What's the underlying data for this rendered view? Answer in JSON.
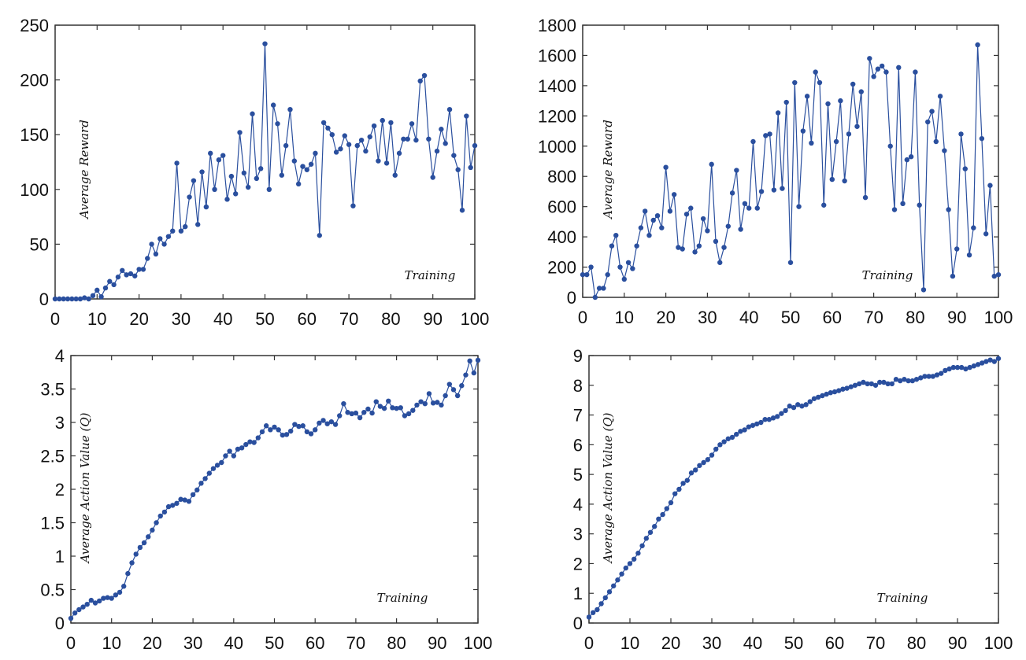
{
  "chart_data": [
    {
      "type": "line",
      "xlabel": "Training",
      "ylabel": "Average Reward",
      "xlim": [
        0,
        100
      ],
      "ylim": [
        0,
        250
      ],
      "xticks": [
        0,
        10,
        20,
        30,
        40,
        50,
        60,
        70,
        80,
        90,
        100
      ],
      "yticks": [
        0,
        50,
        100,
        150,
        200,
        250
      ],
      "color": "#2a4f9e",
      "series": [
        {
          "x": [
            0,
            1,
            2,
            3,
            4,
            5,
            6,
            7,
            8,
            9,
            10,
            11,
            12,
            13,
            14,
            15,
            16,
            17,
            18,
            19,
            20,
            21,
            22,
            23,
            24,
            25,
            26,
            27,
            28,
            29,
            30,
            31,
            32,
            33,
            34,
            35,
            36,
            37,
            38,
            39,
            40,
            41,
            42,
            43,
            44,
            45,
            46,
            47,
            48,
            49,
            50,
            51,
            52,
            53,
            54,
            55,
            56,
            57,
            58,
            59,
            60,
            61,
            62,
            63,
            64,
            65,
            66,
            67,
            68,
            69,
            70,
            71,
            72,
            73,
            74,
            75,
            76,
            77,
            78,
            79,
            80,
            81,
            82,
            83,
            84,
            85,
            86,
            87,
            88,
            89,
            90,
            91,
            92,
            93,
            94,
            95,
            96,
            97,
            98,
            99,
            100
          ],
          "values": [
            0,
            0,
            0,
            0,
            0,
            0,
            0,
            1,
            0,
            3,
            8,
            2,
            10,
            16,
            13,
            20,
            26,
            22,
            23,
            21,
            27,
            27,
            37,
            50,
            41,
            55,
            50,
            57,
            62,
            124,
            62,
            66,
            93,
            108,
            68,
            116,
            84,
            133,
            100,
            127,
            131,
            91,
            112,
            96,
            152,
            115,
            102,
            169,
            110,
            119,
            233,
            100,
            177,
            160,
            113,
            140,
            173,
            126,
            105,
            121,
            118,
            123,
            133,
            58,
            161,
            156,
            150,
            134,
            137,
            149,
            141,
            85,
            140,
            145,
            135,
            148,
            158,
            126,
            163,
            124,
            161,
            113,
            133,
            146,
            146,
            160,
            145,
            199,
            204,
            146,
            111,
            135,
            155,
            142,
            173,
            131,
            118,
            81,
            167,
            120,
            140
          ]
        }
      ]
    },
    {
      "type": "line",
      "xlabel": "Training",
      "ylabel": "Average Reward",
      "xlim": [
        0,
        100
      ],
      "ylim": [
        0,
        1800
      ],
      "xticks": [
        0,
        10,
        20,
        30,
        40,
        50,
        60,
        70,
        80,
        90,
        100
      ],
      "yticks": [
        0,
        200,
        400,
        600,
        800,
        1000,
        1200,
        1400,
        1600,
        1800
      ],
      "color": "#2a4f9e",
      "series": [
        {
          "x": [
            0,
            1,
            2,
            3,
            4,
            5,
            6,
            7,
            8,
            9,
            10,
            11,
            12,
            13,
            14,
            15,
            16,
            17,
            18,
            19,
            20,
            21,
            22,
            23,
            24,
            25,
            26,
            27,
            28,
            29,
            30,
            31,
            32,
            33,
            34,
            35,
            36,
            37,
            38,
            39,
            40,
            41,
            42,
            43,
            44,
            45,
            46,
            47,
            48,
            49,
            50,
            51,
            52,
            53,
            54,
            55,
            56,
            57,
            58,
            59,
            60,
            61,
            62,
            63,
            64,
            65,
            66,
            67,
            68,
            69,
            70,
            71,
            72,
            73,
            74,
            75,
            76,
            77,
            78,
            79,
            80,
            81,
            82,
            83,
            84,
            85,
            86,
            87,
            88,
            89,
            90,
            91,
            92,
            93,
            94,
            95,
            96,
            97,
            98,
            99,
            100
          ],
          "values": [
            150,
            150,
            200,
            0,
            60,
            60,
            150,
            340,
            410,
            200,
            120,
            230,
            190,
            340,
            460,
            570,
            410,
            510,
            540,
            460,
            860,
            570,
            680,
            330,
            320,
            550,
            590,
            300,
            340,
            520,
            440,
            880,
            370,
            230,
            330,
            470,
            690,
            840,
            450,
            620,
            590,
            1030,
            590,
            700,
            1070,
            1080,
            710,
            1220,
            720,
            1290,
            230,
            1420,
            600,
            1100,
            1330,
            1020,
            1490,
            1420,
            610,
            1280,
            780,
            1030,
            1300,
            770,
            1080,
            1410,
            1130,
            1360,
            660,
            1580,
            1460,
            1510,
            1530,
            1490,
            1000,
            580,
            1520,
            620,
            910,
            930,
            1490,
            610,
            50,
            1160,
            1230,
            1030,
            1330,
            970,
            580,
            140,
            320,
            1080,
            850,
            280,
            460,
            1670,
            1050,
            420,
            740,
            140,
            150
          ]
        }
      ]
    },
    {
      "type": "line",
      "xlabel": "Training",
      "ylabel": "Average Action Value (Q)",
      "xlim": [
        0,
        100
      ],
      "ylim": [
        0,
        4
      ],
      "xticks": [
        0,
        10,
        20,
        30,
        40,
        50,
        60,
        70,
        80,
        90,
        100
      ],
      "yticks": [
        0,
        0.5,
        1,
        1.5,
        2,
        2.5,
        3,
        3.5,
        4
      ],
      "color": "#2a4f9e",
      "series": [
        {
          "x": [
            0,
            1,
            2,
            3,
            4,
            5,
            6,
            7,
            8,
            9,
            10,
            11,
            12,
            13,
            14,
            15,
            16,
            17,
            18,
            19,
            20,
            21,
            22,
            23,
            24,
            25,
            26,
            27,
            28,
            29,
            30,
            31,
            32,
            33,
            34,
            35,
            36,
            37,
            38,
            39,
            40,
            41,
            42,
            43,
            44,
            45,
            46,
            47,
            48,
            49,
            50,
            51,
            52,
            53,
            54,
            55,
            56,
            57,
            58,
            59,
            60,
            61,
            62,
            63,
            64,
            65,
            66,
            67,
            68,
            69,
            70,
            71,
            72,
            73,
            74,
            75,
            76,
            77,
            78,
            79,
            80,
            81,
            82,
            83,
            84,
            85,
            86,
            87,
            88,
            89,
            90,
            91,
            92,
            93,
            94,
            95,
            96,
            97,
            98,
            99,
            100
          ],
          "values": [
            0.07,
            0.15,
            0.2,
            0.24,
            0.28,
            0.34,
            0.3,
            0.33,
            0.37,
            0.38,
            0.37,
            0.42,
            0.46,
            0.55,
            0.74,
            0.9,
            1.03,
            1.13,
            1.2,
            1.29,
            1.39,
            1.5,
            1.6,
            1.66,
            1.74,
            1.76,
            1.79,
            1.85,
            1.84,
            1.82,
            1.92,
            1.99,
            2.09,
            2.16,
            2.24,
            2.31,
            2.36,
            2.4,
            2.5,
            2.57,
            2.5,
            2.6,
            2.62,
            2.67,
            2.71,
            2.7,
            2.77,
            2.86,
            2.95,
            2.89,
            2.93,
            2.89,
            2.81,
            2.82,
            2.87,
            2.97,
            2.94,
            2.95,
            2.86,
            2.83,
            2.89,
            2.99,
            3.03,
            2.98,
            3.01,
            2.97,
            3.1,
            3.28,
            3.15,
            3.13,
            3.14,
            3.07,
            3.15,
            3.2,
            3.14,
            3.31,
            3.24,
            3.21,
            3.32,
            3.22,
            3.21,
            3.22,
            3.1,
            3.13,
            3.18,
            3.26,
            3.31,
            3.28,
            3.43,
            3.29,
            3.3,
            3.26,
            3.4,
            3.57,
            3.49,
            3.4,
            3.55,
            3.71,
            3.92,
            3.74,
            3.93
          ]
        }
      ]
    },
    {
      "type": "line",
      "xlabel": "Training",
      "ylabel": "Average Action Value (Q)",
      "xlim": [
        0,
        100
      ],
      "ylim": [
        0,
        9
      ],
      "xticks": [
        0,
        10,
        20,
        30,
        40,
        50,
        60,
        70,
        80,
        90,
        100
      ],
      "yticks": [
        0,
        1,
        2,
        3,
        4,
        5,
        6,
        7,
        8,
        9
      ],
      "color": "#2a4f9e",
      "series": [
        {
          "x": [
            0,
            1,
            2,
            3,
            4,
            5,
            6,
            7,
            8,
            9,
            10,
            11,
            12,
            13,
            14,
            15,
            16,
            17,
            18,
            19,
            20,
            21,
            22,
            23,
            24,
            25,
            26,
            27,
            28,
            29,
            30,
            31,
            32,
            33,
            34,
            35,
            36,
            37,
            38,
            39,
            40,
            41,
            42,
            43,
            44,
            45,
            46,
            47,
            48,
            49,
            50,
            51,
            52,
            53,
            54,
            55,
            56,
            57,
            58,
            59,
            60,
            61,
            62,
            63,
            64,
            65,
            66,
            67,
            68,
            69,
            70,
            71,
            72,
            73,
            74,
            75,
            76,
            77,
            78,
            79,
            80,
            81,
            82,
            83,
            84,
            85,
            86,
            87,
            88,
            89,
            90,
            91,
            92,
            93,
            94,
            95,
            96,
            97,
            98,
            99,
            100
          ],
          "values": [
            0.2,
            0.35,
            0.45,
            0.65,
            0.85,
            1.05,
            1.25,
            1.45,
            1.65,
            1.85,
            2.0,
            2.15,
            2.35,
            2.6,
            2.85,
            3.05,
            3.25,
            3.5,
            3.65,
            3.85,
            4.05,
            4.35,
            4.5,
            4.7,
            4.8,
            5.05,
            5.15,
            5.3,
            5.4,
            5.5,
            5.65,
            5.85,
            6.0,
            6.1,
            6.2,
            6.25,
            6.35,
            6.45,
            6.5,
            6.6,
            6.65,
            6.7,
            6.75,
            6.85,
            6.85,
            6.9,
            6.95,
            7.05,
            7.15,
            7.3,
            7.25,
            7.35,
            7.3,
            7.35,
            7.45,
            7.55,
            7.6,
            7.65,
            7.7,
            7.75,
            7.78,
            7.82,
            7.87,
            7.9,
            7.95,
            8.0,
            8.05,
            8.1,
            8.05,
            8.05,
            8.0,
            8.1,
            8.1,
            8.05,
            8.05,
            8.2,
            8.15,
            8.2,
            8.15,
            8.15,
            8.2,
            8.25,
            8.3,
            8.3,
            8.3,
            8.35,
            8.4,
            8.5,
            8.55,
            8.6,
            8.6,
            8.6,
            8.55,
            8.6,
            8.65,
            8.7,
            8.75,
            8.8,
            8.85,
            8.8,
            8.9
          ]
        }
      ]
    }
  ]
}
